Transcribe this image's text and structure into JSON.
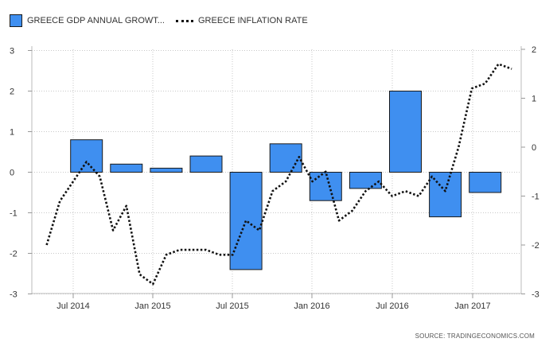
{
  "legend": {
    "gdp_label": "GREECE GDP ANNUAL GROWT...",
    "inflation_label": "GREECE INFLATION RATE"
  },
  "source": "SOURCE: TRADINGECONOMICS.COM",
  "colors": {
    "bar": "#3f8ff0",
    "bar_edge": "#1a1a1a",
    "line": "#111111",
    "grid": "#c8c8c8"
  },
  "chart_data": {
    "type": "bar",
    "title": "",
    "grid": true,
    "legend_position": "top-left",
    "x_ticks": [
      "Jul 2014",
      "Jan 2015",
      "Jul 2015",
      "Jan 2016",
      "Jul 2016",
      "Jan 2017"
    ],
    "y_left": {
      "ticks": [
        "3",
        "2",
        "1",
        "0",
        "-1",
        "-2",
        "-3"
      ],
      "range": [
        -3,
        3
      ]
    },
    "y_right": {
      "ticks": [
        "2",
        "1",
        "0",
        "-1",
        "-2",
        "-3"
      ],
      "range": [
        -3,
        2
      ]
    },
    "series": [
      {
        "name": "GREECE GDP ANNUAL GROWT...",
        "type": "bar",
        "axis": "left",
        "x": [
          "2014-Q3",
          "2014-Q4",
          "2015-Q1",
          "2015-Q2",
          "2015-Q3",
          "2015-Q4",
          "2016-Q1",
          "2016-Q2",
          "2016-Q3",
          "2016-Q4",
          "2017-Q1"
        ],
        "values": [
          0.8,
          0.2,
          0.1,
          0.4,
          -2.4,
          0.7,
          -0.7,
          -0.4,
          2.0,
          -1.1,
          -0.5
        ]
      },
      {
        "name": "GREECE INFLATION RATE",
        "type": "line",
        "axis": "right",
        "x": [
          "2014-05",
          "2014-06",
          "2014-07",
          "2014-08",
          "2014-09",
          "2014-10",
          "2014-11",
          "2014-12",
          "2015-01",
          "2015-02",
          "2015-03",
          "2015-04",
          "2015-05",
          "2015-06",
          "2015-07",
          "2015-08",
          "2015-09",
          "2015-10",
          "2015-11",
          "2015-12",
          "2016-01",
          "2016-02",
          "2016-03",
          "2016-04",
          "2016-05",
          "2016-06",
          "2016-07",
          "2016-08",
          "2016-09",
          "2016-10",
          "2016-11",
          "2016-12",
          "2017-01",
          "2017-02",
          "2017-03",
          "2017-04"
        ],
        "values": [
          -2.0,
          -1.1,
          -0.7,
          -0.3,
          -0.6,
          -1.7,
          -1.2,
          -2.6,
          -2.8,
          -2.2,
          -2.1,
          -2.1,
          -2.1,
          -2.2,
          -2.2,
          -1.5,
          -1.7,
          -0.9,
          -0.7,
          -0.2,
          -0.7,
          -0.5,
          -1.5,
          -1.3,
          -0.9,
          -0.7,
          -1.0,
          -0.9,
          -1.0,
          -0.6,
          -0.9,
          0.0,
          1.2,
          1.3,
          1.7,
          1.6
        ]
      }
    ]
  }
}
